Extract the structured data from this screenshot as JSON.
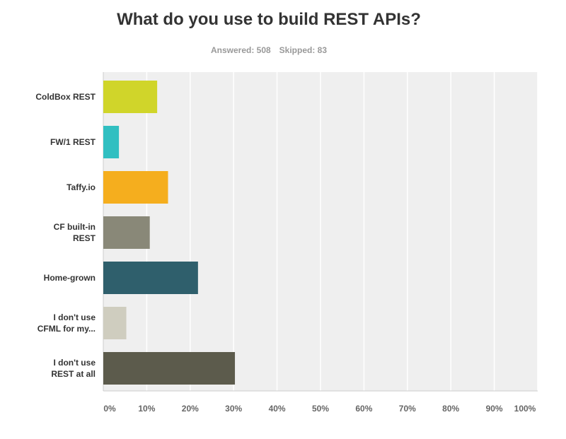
{
  "header": {
    "answered_label": "Answered: 508",
    "skipped_label": "Skipped: 83"
  },
  "chart_data": {
    "type": "bar",
    "orientation": "horizontal",
    "title": "What do you use to build REST APIs?",
    "categories": [
      [
        "ColdBox REST"
      ],
      [
        "FW/1 REST"
      ],
      [
        "Taffy.io"
      ],
      [
        "CF built-in",
        "REST"
      ],
      [
        "Home-grown"
      ],
      [
        "I don't use",
        "CFML for my..."
      ],
      [
        "I don't use",
        "REST at all"
      ]
    ],
    "values": [
      12.4,
      3.6,
      14.9,
      10.7,
      21.8,
      5.3,
      30.3
    ],
    "colors": [
      "#d0d52a",
      "#31bfc1",
      "#f5ae1e",
      "#898878",
      "#2f5f6c",
      "#cfcdbf",
      "#5c5b4c"
    ],
    "xlim": [
      0,
      100
    ],
    "xticks": [
      "0%",
      "10%",
      "20%",
      "30%",
      "40%",
      "50%",
      "60%",
      "70%",
      "80%",
      "90%",
      "100%"
    ],
    "grid": true,
    "background": "#efefef"
  }
}
